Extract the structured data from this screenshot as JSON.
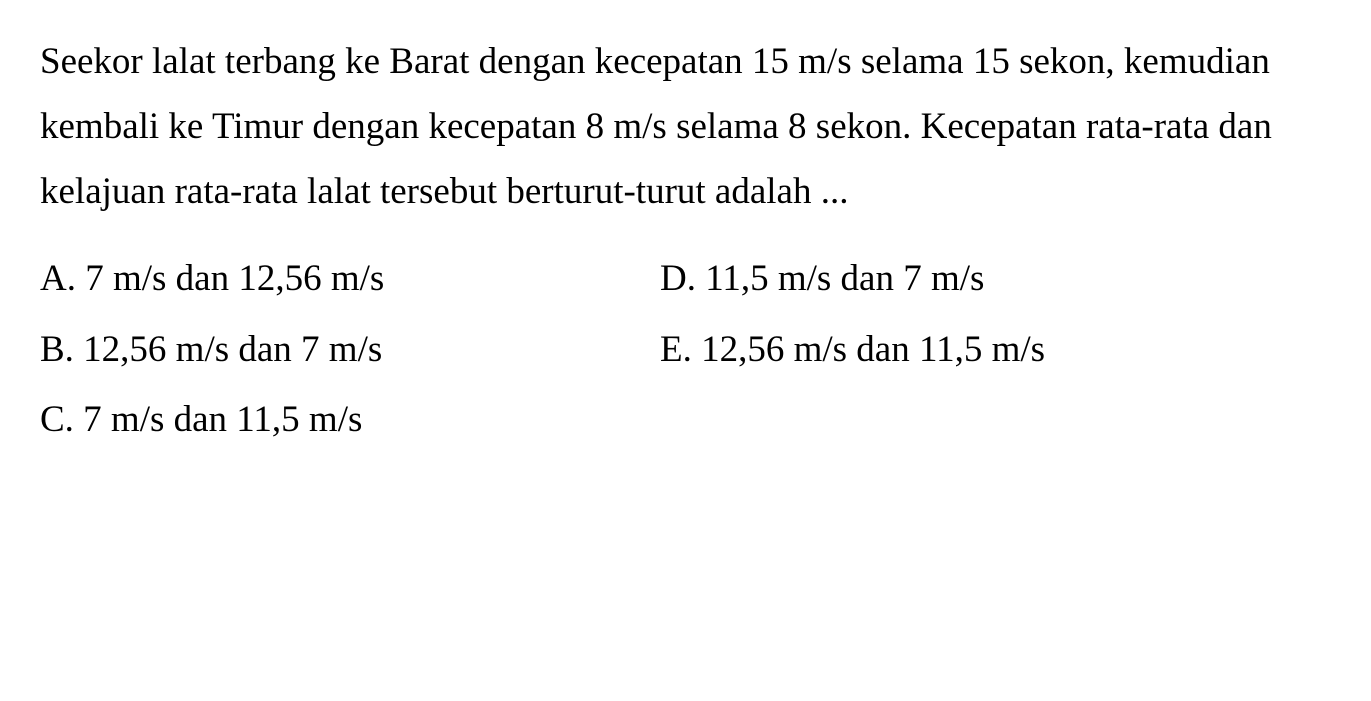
{
  "question": {
    "text": "Seekor lalat terbang ke Barat dengan kecepatan 15 m/s selama 15 sekon, kemudian kembali ke Timur dengan kecepatan 8 m/s selama 8 sekon. Kecepatan rata-rata dan kelajuan rata-rata lalat tersebut berturut-turut adalah ..."
  },
  "options": {
    "a": "A. 7 m/s dan 12,56 m/s",
    "b": "B. 12,56 m/s dan 7 m/s",
    "c": "C. 7 m/s dan 11,5 m/s",
    "d": "D. 11,5 m/s dan 7 m/s",
    "e": "E. 12,56 m/s dan 11,5 m/s"
  },
  "style": {
    "font_family": "Times New Roman",
    "font_size_pt": 28,
    "text_color": "#000000",
    "background_color": "#ffffff",
    "line_height": 1.75
  }
}
